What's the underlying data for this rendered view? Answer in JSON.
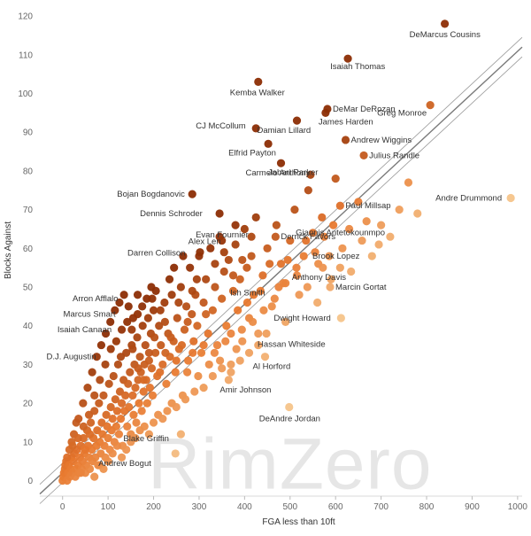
{
  "chart_data": {
    "type": "scatter",
    "title": "",
    "xlabel": "FGA less than 10ft",
    "ylabel": "Blocks Against",
    "xlim": [
      -50,
      1010
    ],
    "ylim": [
      -4,
      123
    ],
    "x_ticks": [
      0,
      100,
      200,
      300,
      400,
      500,
      600,
      700,
      800,
      900,
      1000
    ],
    "y_ticks": [
      0,
      10,
      20,
      30,
      40,
      50,
      60,
      70,
      80,
      90,
      100,
      110,
      120
    ],
    "grid": false,
    "watermark": "RimZero",
    "trend_line": {
      "slope": 0.1089,
      "intercept": 2.0,
      "band": 2.5
    },
    "color_scale": {
      "low": "#f5c48a",
      "mid": "#e8782e",
      "high": "#8c2d04"
    },
    "labeled_points": [
      {
        "name": "DeMarcus Cousins",
        "x": 840,
        "y": 118
      },
      {
        "name": "Isaiah Thomas",
        "x": 627,
        "y": 109
      },
      {
        "name": "Kemba Walker",
        "x": 430,
        "y": 103
      },
      {
        "name": "DeMar DeRozan",
        "x": 582,
        "y": 96
      },
      {
        "name": "Greg Monroe",
        "x": 808,
        "y": 97
      },
      {
        "name": "James Harden",
        "x": 578,
        "y": 95
      },
      {
        "name": "CJ McCollum",
        "x": 425,
        "y": 91
      },
      {
        "name": "Damian Lillard",
        "x": 515,
        "y": 93
      },
      {
        "name": "Andrew Wiggins",
        "x": 622,
        "y": 88
      },
      {
        "name": "Elfrid Payton",
        "x": 452,
        "y": 87
      },
      {
        "name": "Julius Randle",
        "x": 662,
        "y": 84
      },
      {
        "name": "Carmelo Anthony",
        "x": 480,
        "y": 82
      },
      {
        "name": "Jabari Parker",
        "x": 545,
        "y": 79
      },
      {
        "name": "Bojan Bogdanovic",
        "x": 285,
        "y": 74
      },
      {
        "name": "Andre Drummond",
        "x": 985,
        "y": 73
      },
      {
        "name": "Paul Millsap",
        "x": 610,
        "y": 71
      },
      {
        "name": "Dennis Schroder",
        "x": 345,
        "y": 69
      },
      {
        "name": "Evan Fournier",
        "x": 380,
        "y": 66
      },
      {
        "name": "Giannis Antetokounmpo",
        "x": 668,
        "y": 67
      },
      {
        "name": "Alex Len",
        "x": 350,
        "y": 62
      },
      {
        "name": "Derrick Favors",
        "x": 468,
        "y": 63
      },
      {
        "name": "Brook Lopez",
        "x": 695,
        "y": 61
      },
      {
        "name": "Darren Collison",
        "x": 302,
        "y": 59
      },
      {
        "name": "Anthony Davis",
        "x": 572,
        "y": 55
      },
      {
        "name": "Ish Smith",
        "x": 485,
        "y": 51
      },
      {
        "name": "Marcin Gortat",
        "x": 588,
        "y": 50
      },
      {
        "name": "Arron Afflalo",
        "x": 197,
        "y": 47
      },
      {
        "name": "Dwight Howard",
        "x": 612,
        "y": 42
      },
      {
        "name": "Marcus Smart",
        "x": 165,
        "y": 43
      },
      {
        "name": "Isaiah Canaan",
        "x": 152,
        "y": 39
      },
      {
        "name": "Hassan Whiteside",
        "x": 448,
        "y": 38
      },
      {
        "name": "D.J. Augustin",
        "x": 128,
        "y": 32
      },
      {
        "name": "Al Horford",
        "x": 445,
        "y": 32
      },
      {
        "name": "Amir Johnson",
        "x": 365,
        "y": 26
      },
      {
        "name": "DeAndre Jordan",
        "x": 498,
        "y": 19
      },
      {
        "name": "Blake Griffin",
        "x": 260,
        "y": 12
      },
      {
        "name": "Andrew Bogut",
        "x": 248,
        "y": 7
      }
    ],
    "other_points": [
      [
        0,
        0
      ],
      [
        2,
        1
      ],
      [
        3,
        2
      ],
      [
        5,
        3
      ],
      [
        6,
        4
      ],
      [
        8,
        5
      ],
      [
        10,
        0
      ],
      [
        12,
        2
      ],
      [
        14,
        4
      ],
      [
        16,
        1
      ],
      [
        18,
        3
      ],
      [
        20,
        6
      ],
      [
        22,
        2
      ],
      [
        24,
        5
      ],
      [
        26,
        7
      ],
      [
        28,
        1
      ],
      [
        30,
        3
      ],
      [
        32,
        8
      ],
      [
        34,
        4
      ],
      [
        36,
        2
      ],
      [
        38,
        6
      ],
      [
        40,
        9
      ],
      [
        42,
        3
      ],
      [
        44,
        5
      ],
      [
        46,
        11
      ],
      [
        48,
        7
      ],
      [
        50,
        2
      ],
      [
        52,
        4
      ],
      [
        54,
        13
      ],
      [
        56,
        9
      ],
      [
        58,
        6
      ],
      [
        60,
        3
      ],
      [
        62,
        15
      ],
      [
        64,
        8
      ],
      [
        66,
        5
      ],
      [
        68,
        11
      ],
      [
        70,
        18
      ],
      [
        72,
        6
      ],
      [
        74,
        9
      ],
      [
        76,
        13
      ],
      [
        78,
        4
      ],
      [
        80,
        20
      ],
      [
        82,
        10
      ],
      [
        84,
        7
      ],
      [
        86,
        15
      ],
      [
        88,
        12
      ],
      [
        90,
        22
      ],
      [
        92,
        9
      ],
      [
        94,
        6
      ],
      [
        96,
        17
      ],
      [
        98,
        14
      ],
      [
        100,
        11
      ],
      [
        102,
        25
      ],
      [
        104,
        8
      ],
      [
        106,
        19
      ],
      [
        108,
        13
      ],
      [
        110,
        16
      ],
      [
        112,
        27
      ],
      [
        114,
        10
      ],
      [
        116,
        21
      ],
      [
        118,
        14
      ],
      [
        120,
        18
      ],
      [
        122,
        30
      ],
      [
        124,
        12
      ],
      [
        126,
        23
      ],
      [
        128,
        16
      ],
      [
        130,
        20
      ],
      [
        132,
        9
      ],
      [
        134,
        26
      ],
      [
        136,
        18
      ],
      [
        138,
        22
      ],
      [
        140,
        33
      ],
      [
        142,
        14
      ],
      [
        144,
        25
      ],
      [
        146,
        19
      ],
      [
        148,
        28
      ],
      [
        150,
        12
      ],
      [
        152,
        35
      ],
      [
        154,
        22
      ],
      [
        156,
        17
      ],
      [
        158,
        30
      ],
      [
        160,
        24
      ],
      [
        162,
        15
      ],
      [
        164,
        37
      ],
      [
        166,
        26
      ],
      [
        168,
        20
      ],
      [
        170,
        32
      ],
      [
        172,
        28
      ],
      [
        174,
        18
      ],
      [
        176,
        40
      ],
      [
        178,
        23
      ],
      [
        180,
        30
      ],
      [
        182,
        35
      ],
      [
        184,
        26
      ],
      [
        186,
        20
      ],
      [
        188,
        42
      ],
      [
        190,
        31
      ],
      [
        192,
        24
      ],
      [
        194,
        38
      ],
      [
        196,
        29
      ],
      [
        198,
        22
      ],
      [
        200,
        44
      ],
      [
        204,
        33
      ],
      [
        208,
        27
      ],
      [
        212,
        40
      ],
      [
        216,
        35
      ],
      [
        220,
        30
      ],
      [
        224,
        46
      ],
      [
        228,
        25
      ],
      [
        232,
        38
      ],
      [
        236,
        32
      ],
      [
        240,
        48
      ],
      [
        244,
        36
      ],
      [
        248,
        28
      ],
      [
        252,
        42
      ],
      [
        256,
        34
      ],
      [
        260,
        50
      ],
      [
        264,
        22
      ],
      [
        268,
        39
      ],
      [
        272,
        45
      ],
      [
        276,
        31
      ],
      [
        280,
        55
      ],
      [
        284,
        43
      ],
      [
        288,
        36
      ],
      [
        292,
        48
      ],
      [
        296,
        40
      ],
      [
        300,
        58
      ],
      [
        305,
        33
      ],
      [
        310,
        46
      ],
      [
        315,
        52
      ],
      [
        320,
        38
      ],
      [
        325,
        60
      ],
      [
        330,
        44
      ],
      [
        335,
        50
      ],
      [
        340,
        35
      ],
      [
        345,
        63
      ],
      [
        350,
        47
      ],
      [
        355,
        54
      ],
      [
        360,
        40
      ],
      [
        365,
        57
      ],
      [
        370,
        30
      ],
      [
        375,
        49
      ],
      [
        380,
        61
      ],
      [
        385,
        44
      ],
      [
        390,
        52
      ],
      [
        395,
        36
      ],
      [
        400,
        65
      ],
      [
        405,
        55
      ],
      [
        410,
        42
      ],
      [
        415,
        58
      ],
      [
        420,
        48
      ],
      [
        425,
        68
      ],
      [
        430,
        38
      ],
      [
        440,
        53
      ],
      [
        450,
        60
      ],
      [
        460,
        45
      ],
      [
        470,
        66
      ],
      [
        480,
        56
      ],
      [
        490,
        41
      ],
      [
        500,
        62
      ],
      [
        510,
        70
      ],
      [
        520,
        48
      ],
      [
        530,
        58
      ],
      [
        540,
        75
      ],
      [
        550,
        64
      ],
      [
        560,
        46
      ],
      [
        570,
        68
      ],
      [
        590,
        52
      ],
      [
        600,
        78
      ],
      [
        615,
        60
      ],
      [
        630,
        65
      ],
      [
        650,
        72
      ],
      [
        680,
        58
      ],
      [
        720,
        63
      ],
      [
        760,
        77
      ],
      [
        780,
        69
      ],
      [
        20,
        10
      ],
      [
        30,
        15
      ],
      [
        40,
        2
      ],
      [
        50,
        8
      ],
      [
        60,
        12
      ],
      [
        70,
        1
      ],
      [
        80,
        4
      ],
      [
        90,
        3
      ],
      [
        100,
        5
      ],
      [
        110,
        7
      ],
      [
        120,
        9
      ],
      [
        130,
        6
      ],
      [
        140,
        8
      ],
      [
        150,
        10
      ],
      [
        160,
        11
      ],
      [
        170,
        13
      ],
      [
        180,
        14
      ],
      [
        190,
        12
      ],
      [
        200,
        15
      ],
      [
        210,
        17
      ],
      [
        220,
        16
      ],
      [
        230,
        18
      ],
      [
        240,
        20
      ],
      [
        250,
        19
      ],
      [
        270,
        21
      ],
      [
        290,
        23
      ],
      [
        310,
        24
      ],
      [
        330,
        27
      ],
      [
        350,
        29
      ],
      [
        370,
        28
      ],
      [
        390,
        31
      ],
      [
        410,
        33
      ],
      [
        430,
        35
      ],
      [
        15,
        8
      ],
      [
        25,
        12
      ],
      [
        35,
        16
      ],
      [
        45,
        20
      ],
      [
        55,
        24
      ],
      [
        65,
        28
      ],
      [
        75,
        32
      ],
      [
        85,
        35
      ],
      [
        95,
        38
      ],
      [
        105,
        41
      ],
      [
        115,
        44
      ],
      [
        125,
        46
      ],
      [
        135,
        48
      ],
      [
        145,
        45
      ],
      [
        155,
        42
      ],
      [
        165,
        48
      ],
      [
        175,
        45
      ],
      [
        185,
        47
      ],
      [
        195,
        50
      ],
      [
        205,
        49
      ],
      [
        215,
        44
      ],
      [
        225,
        41
      ],
      [
        235,
        52
      ],
      [
        245,
        55
      ],
      [
        255,
        46
      ],
      [
        265,
        58
      ],
      [
        275,
        41
      ],
      [
        285,
        49
      ],
      [
        295,
        52
      ],
      [
        315,
        43
      ],
      [
        335,
        56
      ],
      [
        355,
        59
      ],
      [
        375,
        53
      ],
      [
        395,
        57
      ],
      [
        415,
        63
      ],
      [
        435,
        49
      ],
      [
        455,
        56
      ],
      [
        475,
        50
      ],
      [
        495,
        57
      ],
      [
        515,
        53
      ],
      [
        535,
        62
      ],
      [
        555,
        59
      ],
      [
        575,
        63
      ],
      [
        595,
        66
      ],
      [
        10,
        6
      ],
      [
        22,
        9
      ],
      [
        34,
        11
      ],
      [
        46,
        14
      ],
      [
        58,
        17
      ],
      [
        70,
        22
      ],
      [
        82,
        26
      ],
      [
        94,
        30
      ],
      [
        106,
        34
      ],
      [
        118,
        36
      ],
      [
        130,
        39
      ],
      [
        142,
        41
      ],
      [
        154,
        34
      ],
      [
        166,
        29
      ],
      [
        178,
        26
      ],
      [
        190,
        33
      ],
      [
        202,
        37
      ],
      [
        214,
        28
      ],
      [
        226,
        33
      ],
      [
        238,
        37
      ],
      [
        250,
        31
      ],
      [
        262,
        35
      ],
      [
        274,
        28
      ],
      [
        286,
        33
      ],
      [
        298,
        27
      ],
      [
        310,
        35
      ],
      [
        322,
        30
      ],
      [
        334,
        33
      ],
      [
        346,
        31
      ],
      [
        358,
        36
      ],
      [
        370,
        38
      ],
      [
        382,
        34
      ],
      [
        394,
        39
      ],
      [
        406,
        46
      ],
      [
        418,
        41
      ],
      [
        442,
        44
      ],
      [
        466,
        47
      ],
      [
        490,
        51
      ],
      [
        514,
        55
      ],
      [
        538,
        50
      ],
      [
        562,
        56
      ],
      [
        586,
        58
      ],
      [
        610,
        55
      ],
      [
        634,
        54
      ],
      [
        658,
        62
      ],
      [
        700,
        66
      ],
      [
        740,
        70
      ]
    ]
  }
}
